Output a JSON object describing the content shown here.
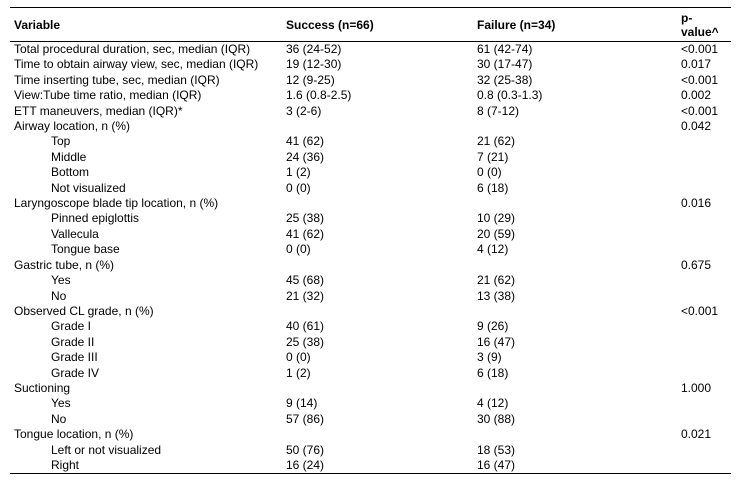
{
  "table": {
    "headers": [
      "Variable",
      "Success (n=66)",
      "Failure (n=34)",
      "p-value^"
    ],
    "rows": [
      {
        "label": "Total procedural duration, sec, median (IQR)",
        "success": "36 (24-52)",
        "failure": "61 (42-74)",
        "p": "<0.001",
        "indent": false
      },
      {
        "label": "Time to obtain airway view, sec, median (IQR)",
        "success": "19 (12-30)",
        "failure": "30 (17-47)",
        "p": "0.017",
        "indent": false
      },
      {
        "label": "Time inserting tube, sec, median (IQR)",
        "success": "12 (9-25)",
        "failure": "32 (25-38)",
        "p": "<0.001",
        "indent": false
      },
      {
        "label": "View:Tube time ratio, median (IQR)",
        "success": "1.6 (0.8-2.5)",
        "failure": "0.8 (0.3-1.3)",
        "p": "0.002",
        "indent": false
      },
      {
        "label": "ETT maneuvers, median (IQR)*",
        "success": "3 (2-6)",
        "failure": "8 (7-12)",
        "p": "<0.001",
        "indent": false
      },
      {
        "label": "Airway location, n (%)",
        "success": "",
        "failure": "",
        "p": "0.042",
        "indent": false
      },
      {
        "label": "Top",
        "success": "41 (62)",
        "failure": "21 (62)",
        "p": "",
        "indent": true
      },
      {
        "label": "Middle",
        "success": "24 (36)",
        "failure": "7 (21)",
        "p": "",
        "indent": true
      },
      {
        "label": "Bottom",
        "success": "1 (2)",
        "failure": "0 (0)",
        "p": "",
        "indent": true
      },
      {
        "label": "Not visualized",
        "success": "0 (0)",
        "failure": "6 (18)",
        "p": "",
        "indent": true
      },
      {
        "label": "Laryngoscope blade tip location, n (%)",
        "success": "",
        "failure": "",
        "p": "0.016",
        "indent": false
      },
      {
        "label": "Pinned epiglottis",
        "success": "25 (38)",
        "failure": "10 (29)",
        "p": "",
        "indent": true
      },
      {
        "label": "Vallecula",
        "success": "41 (62)",
        "failure": "20 (59)",
        "p": "",
        "indent": true
      },
      {
        "label": "Tongue base",
        "success": "0 (0)",
        "failure": "4 (12)",
        "p": "",
        "indent": true
      },
      {
        "label": "Gastric tube, n (%)",
        "success": "",
        "failure": "",
        "p": "0.675",
        "indent": false
      },
      {
        "label": "Yes",
        "success": "45 (68)",
        "failure": "21 (62)",
        "p": "",
        "indent": true
      },
      {
        "label": "No",
        "success": "21 (32)",
        "failure": "13 (38)",
        "p": "",
        "indent": true
      },
      {
        "label": "Observed CL grade, n (%)",
        "success": "",
        "failure": "",
        "p": "<0.001",
        "indent": false
      },
      {
        "label": "Grade I",
        "success": "40 (61)",
        "failure": "9 (26)",
        "p": "",
        "indent": true
      },
      {
        "label": "Grade II",
        "success": "25 (38)",
        "failure": "16 (47)",
        "p": "",
        "indent": true
      },
      {
        "label": "Grade III",
        "success": "0 (0)",
        "failure": "3 (9)",
        "p": "",
        "indent": true
      },
      {
        "label": "Grade IV",
        "success": "1 (2)",
        "failure": "6 (18)",
        "p": "",
        "indent": true
      },
      {
        "label": "Suctioning",
        "success": "",
        "failure": "",
        "p": "1.000",
        "indent": false
      },
      {
        "label": "Yes",
        "success": "9 (14)",
        "failure": "4 (12)",
        "p": "",
        "indent": true
      },
      {
        "label": "No",
        "success": "57 (86)",
        "failure": "30 (88)",
        "p": "",
        "indent": true
      },
      {
        "label": "Tongue location, n (%)",
        "success": "",
        "failure": "",
        "p": "0.021",
        "indent": false
      },
      {
        "label": "Left or not visualized",
        "success": "50 (76)",
        "failure": "18 (53)",
        "p": "",
        "indent": true
      },
      {
        "label": "Right",
        "success": "16 (24)",
        "failure": "16 (47)",
        "p": "",
        "indent": true
      }
    ]
  }
}
